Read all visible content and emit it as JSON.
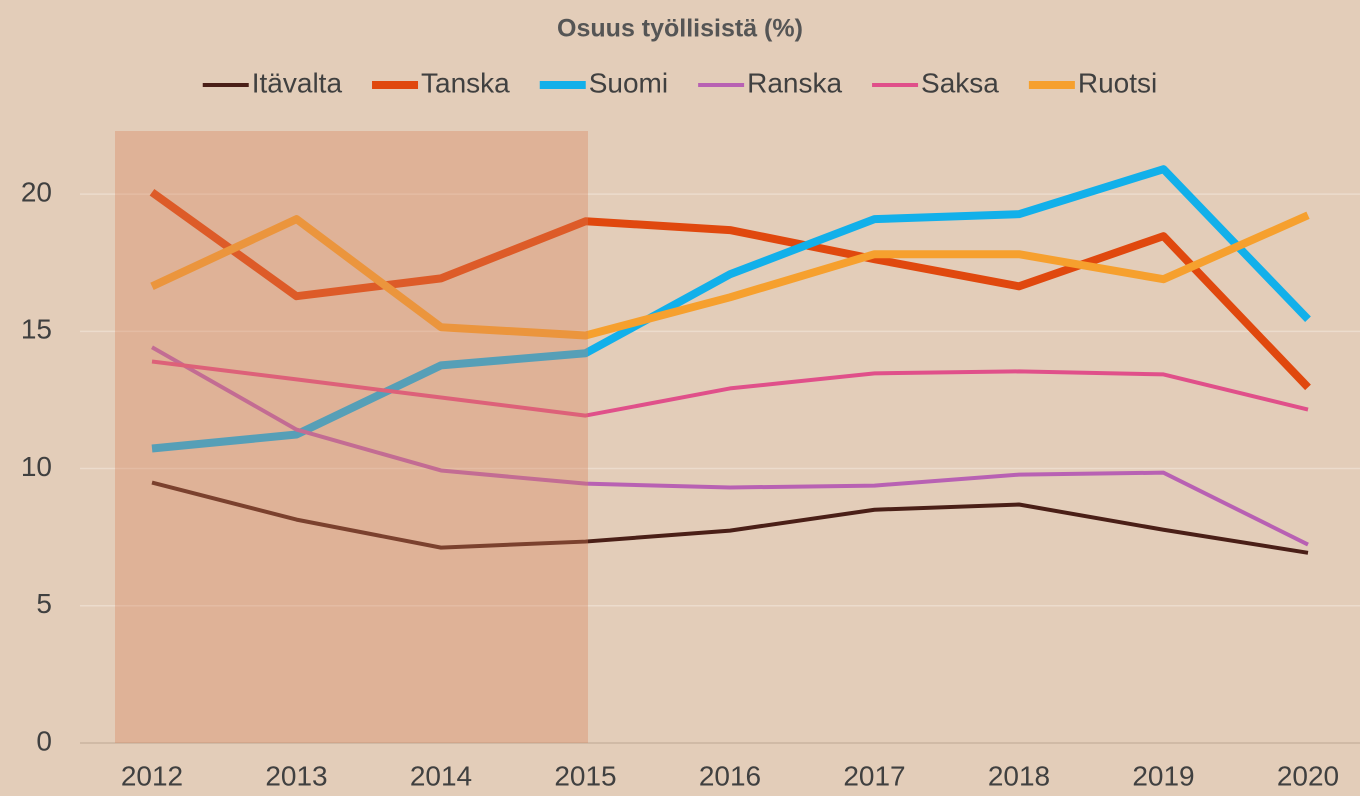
{
  "chart_data": {
    "type": "line",
    "title": "Osuus työllisistä (%)",
    "categories": [
      "2012",
      "2013",
      "2014",
      "2015",
      "2016",
      "2017",
      "2018",
      "2019",
      "2020"
    ],
    "ylim": [
      0,
      22.3
    ],
    "yticks": [
      0,
      5,
      10,
      15,
      20
    ],
    "grid": true,
    "legend": "top",
    "series": [
      {
        "name": "Itävalta",
        "color": "#4a1f17",
        "linewidth": 4,
        "values": [
          9.49,
          8.14,
          7.12,
          7.34,
          7.74,
          8.5,
          8.69,
          7.77,
          6.93
        ]
      },
      {
        "name": "Tanska",
        "color": "#e0480e",
        "linewidth": 8,
        "values": [
          20.07,
          16.28,
          16.93,
          19.01,
          18.69,
          17.63,
          16.64,
          18.47,
          12.96
        ]
      },
      {
        "name": "Suomi",
        "color": "#12b0ea",
        "linewidth": 8,
        "values": [
          10.73,
          11.24,
          13.76,
          14.2,
          17.08,
          19.09,
          19.27,
          20.91,
          15.44
        ]
      },
      {
        "name": "Ranska",
        "color": "#b861b3",
        "linewidth": 4,
        "values": [
          14.42,
          11.42,
          9.93,
          9.45,
          9.31,
          9.38,
          9.78,
          9.85,
          7.23
        ]
      },
      {
        "name": "Saksa",
        "color": "#e0508a",
        "linewidth": 4,
        "values": [
          13.9,
          13.25,
          12.59,
          11.93,
          12.92,
          13.47,
          13.54,
          13.43,
          12.15
        ]
      },
      {
        "name": "Ruotsi",
        "color": "#f6a02e",
        "linewidth": 8,
        "values": [
          16.64,
          19.09,
          15.15,
          14.85,
          16.24,
          17.81,
          17.81,
          16.9,
          19.23
        ]
      }
    ]
  }
}
